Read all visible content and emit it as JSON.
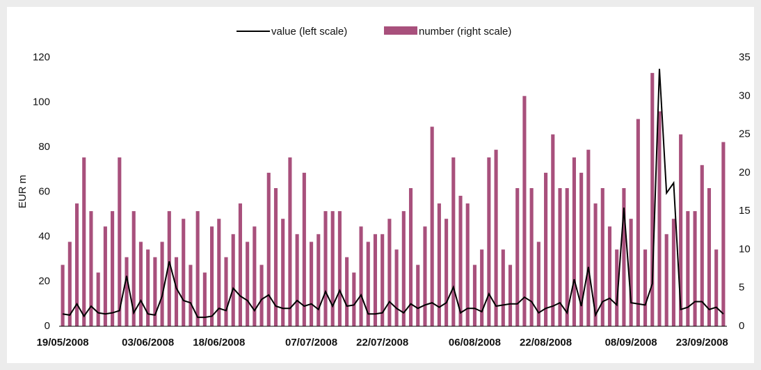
{
  "chart_data": {
    "type": "bar_line",
    "ylabel": "EUR m",
    "categories": [
      "19/05/2008",
      null,
      null,
      null,
      null,
      null,
      null,
      null,
      null,
      null,
      null,
      null,
      "03/06/2008",
      null,
      null,
      null,
      null,
      null,
      null,
      null,
      null,
      null,
      "18/06/2008",
      null,
      null,
      null,
      null,
      null,
      null,
      null,
      null,
      null,
      null,
      null,
      null,
      "07/07/2008",
      null,
      null,
      null,
      null,
      null,
      null,
      null,
      null,
      null,
      "22/07/2008",
      null,
      null,
      null,
      null,
      null,
      null,
      null,
      null,
      null,
      null,
      null,
      null,
      "06/08/2008",
      null,
      null,
      null,
      null,
      null,
      null,
      null,
      null,
      null,
      "22/08/2008",
      null,
      null,
      null,
      null,
      null,
      null,
      null,
      null,
      null,
      null,
      null,
      "08/09/2008",
      null,
      null,
      null,
      null,
      null,
      null,
      null,
      null,
      null,
      "23/09/2008",
      null,
      null,
      null
    ],
    "series": [
      {
        "name": "value (left scale)",
        "color": "#000000",
        "type": "line",
        "axis": "y",
        "values": [
          5.5,
          5,
          10,
          4.5,
          9,
          6,
          5.5,
          6,
          7,
          22.5,
          6,
          11.5,
          5.5,
          5,
          13.5,
          29,
          17,
          11.5,
          10.5,
          4,
          4,
          4.5,
          8,
          7,
          17,
          13.5,
          11.5,
          7,
          12,
          14,
          9,
          8,
          8,
          11.5,
          9,
          10,
          7.5,
          15.5,
          9,
          16,
          9,
          9.5,
          14,
          5.5,
          5.5,
          6,
          11,
          8,
          6,
          10,
          8,
          9.5,
          10.5,
          8.5,
          10.5,
          17.5,
          6,
          8,
          8,
          6.5,
          14.5,
          9,
          9.5,
          10,
          10,
          13,
          11,
          6,
          8,
          9,
          10.5,
          6,
          21,
          9,
          26.5,
          5,
          11,
          12.5,
          9.5,
          53,
          10.5,
          10,
          9.5,
          19,
          115,
          59.5,
          64,
          7.5,
          8.5,
          11,
          11,
          7.5,
          8.5,
          5.5
        ]
      },
      {
        "name": "number (right scale)",
        "color": "#a8507c",
        "type": "bar",
        "axis": "y2",
        "values": [
          8,
          11,
          16,
          22,
          15,
          7,
          13,
          15,
          22,
          9,
          15,
          11,
          10,
          9,
          11,
          15,
          9,
          14,
          8,
          15,
          7,
          13,
          14,
          9,
          12,
          16,
          11,
          13,
          8,
          20,
          18,
          14,
          22,
          12,
          20,
          11,
          12,
          15,
          15,
          15,
          9,
          7,
          13,
          11,
          12,
          12,
          14,
          10,
          15,
          18,
          8,
          13,
          26,
          16,
          14,
          22,
          17,
          16,
          8,
          10,
          22,
          23,
          10,
          8,
          18,
          30,
          18,
          11,
          20,
          25,
          18,
          18,
          22,
          20,
          23,
          16,
          18,
          13,
          10,
          18,
          14,
          27,
          10,
          33,
          28,
          12,
          14,
          25,
          15,
          15,
          21,
          18,
          10,
          24
        ]
      }
    ],
    "ylim": [
      0,
      120
    ],
    "yticks": [
      0,
      20,
      40,
      60,
      80,
      100,
      120
    ],
    "y2lim": [
      0,
      35
    ],
    "y2ticks": [
      0,
      5,
      10,
      15,
      20,
      25,
      30,
      35
    ],
    "legend": "top"
  }
}
